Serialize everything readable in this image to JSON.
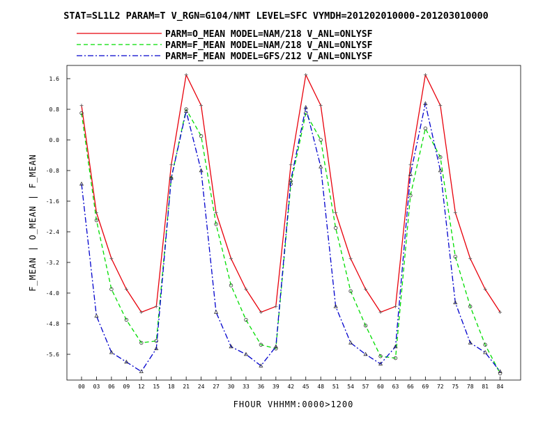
{
  "chart_data": {
    "type": "line",
    "title": "STAT=SL1L2 PARAM=T V_RGN=G104/NMT LEVEL=SFC VYMDH=201202010000-201203010000",
    "xlabel": "FHOUR VHHMM:0000>1200",
    "ylabel": "F_MEAN | O_MEAN | F_MEAN",
    "categories": [
      "00",
      "03",
      "06",
      "09",
      "12",
      "15",
      "18",
      "21",
      "24",
      "27",
      "30",
      "33",
      "36",
      "39",
      "42",
      "45",
      "48",
      "51",
      "54",
      "57",
      "60",
      "63",
      "66",
      "69",
      "72",
      "75",
      "78",
      "81",
      "84"
    ],
    "yticks": [
      "1.6",
      "0.8",
      "0.0",
      "-0.8",
      "-1.6",
      "-2.4",
      "-3.2",
      "-4.0",
      "-4.8",
      "-5.6"
    ],
    "ylim": [
      -6.3,
      1.8
    ],
    "legend_position": "top",
    "grid": false,
    "series": [
      {
        "name": "PARM=O_MEAN MODEL=NAM/218 V_ANL=ONLYSF",
        "color": "#e8000b",
        "dash": "solid",
        "marker": "plus",
        "values": [
          0.9,
          -1.9,
          -3.1,
          -3.9,
          -4.5,
          -4.35,
          -0.65,
          1.7,
          0.9,
          -1.9,
          -3.1,
          -3.9,
          -4.5,
          -4.35,
          -0.65,
          1.7,
          0.9,
          -1.9,
          -3.1,
          -3.9,
          -4.5,
          -4.35,
          -0.65,
          1.7,
          0.9,
          -1.9,
          -3.1,
          -3.9,
          -4.5
        ]
      },
      {
        "name": "PARM=F_MEAN MODEL=NAM/218 V_ANL=ONLYSF",
        "color": "#00dd00",
        "dash": "dashed",
        "marker": "circle",
        "values": [
          0.7,
          -2.1,
          -3.9,
          -4.7,
          -5.3,
          -5.25,
          -1.0,
          0.8,
          0.1,
          -2.2,
          -3.8,
          -4.7,
          -5.35,
          -5.45,
          -1.15,
          0.7,
          0.0,
          -2.3,
          -3.95,
          -4.85,
          -5.65,
          -5.7,
          -1.45,
          0.3,
          -0.45,
          -3.05,
          -4.35,
          -5.35,
          -6.1
        ]
      },
      {
        "name": "PARM=F_MEAN MODEL=GFS/212 V_ANL=ONLYSF",
        "color": "#0000cc",
        "dash": "dashdot",
        "marker": "triangle",
        "values": [
          -1.15,
          -4.6,
          -5.55,
          -5.8,
          -6.05,
          -5.45,
          -1.0,
          0.75,
          -0.8,
          -4.5,
          -5.4,
          -5.6,
          -5.9,
          -5.4,
          -1.05,
          0.85,
          -0.7,
          -4.35,
          -5.3,
          -5.6,
          -5.85,
          -5.4,
          -0.9,
          0.95,
          -0.8,
          -4.25,
          -5.3,
          -5.55,
          -6.05
        ]
      }
    ]
  }
}
